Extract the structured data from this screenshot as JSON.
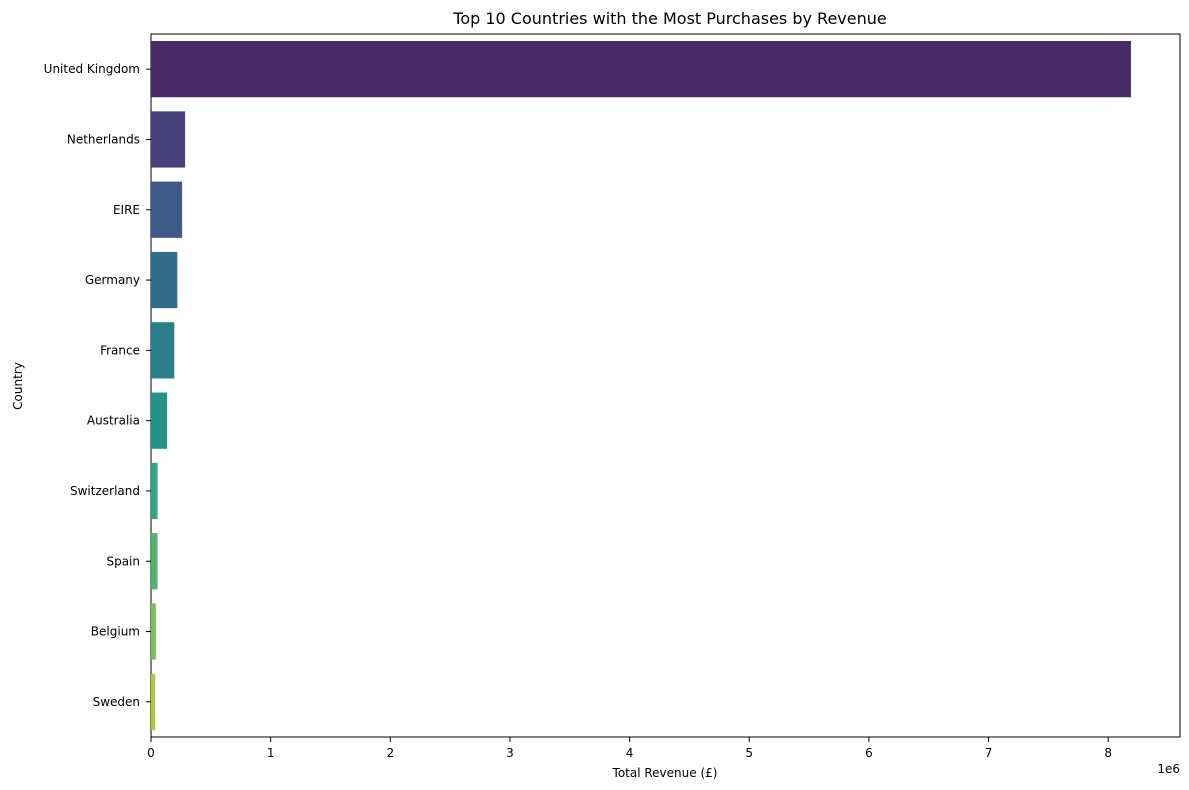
{
  "chart_data": {
    "type": "bar",
    "orientation": "horizontal",
    "title": "Top 10 Countries with the Most Purchases by Revenue",
    "xlabel": "Total Revenue (£)",
    "ylabel": "Country",
    "x_offset_label": "1e6",
    "xlim": [
      0,
      8.6
    ],
    "x_ticks": [
      0,
      1,
      2,
      3,
      4,
      5,
      6,
      7,
      8
    ],
    "grid": false,
    "categories": [
      "United Kingdom",
      "Netherlands",
      "EIRE",
      "Germany",
      "France",
      "Australia",
      "Switzerland",
      "Spain",
      "Belgium",
      "Sweden"
    ],
    "values": [
      8.19,
      0.285,
      0.26,
      0.22,
      0.195,
      0.135,
      0.055,
      0.055,
      0.04,
      0.035
    ],
    "colors": [
      "#482a66",
      "#47407b",
      "#3e5a89",
      "#336d8c",
      "#2a7f8b",
      "#23938a",
      "#2fa685",
      "#4db56f",
      "#76c257",
      "#b0c936"
    ]
  }
}
